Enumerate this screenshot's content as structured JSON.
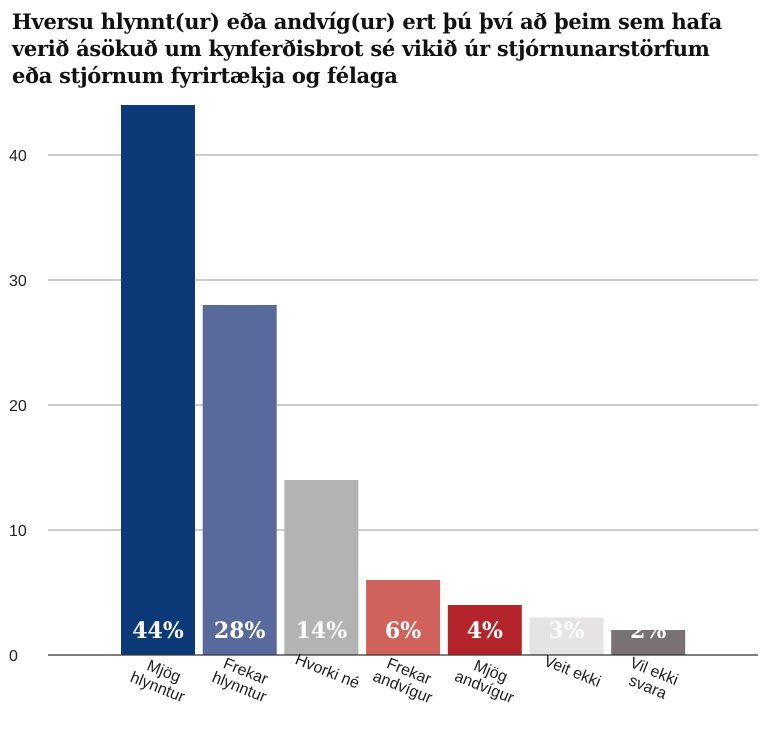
{
  "title_lines": [
    "Hversu hlynnt(ur) eða andvíg(ur) ert þú því að þeim sem hafa",
    "verið ásökuð um kynferðisbrot sé vikið úr stjórnunarstörfum",
    "eða stjórnum fyrirtækja og félaga"
  ],
  "chart_data": {
    "type": "bar",
    "title": "Hversu hlynnt(ur) eða andvíg(ur) ert þú því að þeim sem hafa verið ásökuð um kynferðisbrot sé vikið úr stjórnunarstörfum eða stjórnum fyrirtækja og félaga",
    "categories": [
      [
        "Mjög",
        "hlynntur"
      ],
      [
        "Frekar",
        "hlynntur"
      ],
      [
        "Hvorki né"
      ],
      [
        "Frekar",
        "andvígur"
      ],
      [
        "Mjög",
        "andvígur"
      ],
      [
        "Veit ekki"
      ],
      [
        "Vil ekki",
        "svara"
      ]
    ],
    "values": [
      44,
      28,
      14,
      6,
      4,
      3,
      2
    ],
    "data_labels": [
      "44%",
      "28%",
      "14%",
      "6%",
      "4%",
      "3%",
      "2%"
    ],
    "colors": [
      "#0c3a78",
      "#586a9c",
      "#b3b3b3",
      "#d0625c",
      "#b3252a",
      "#e6e3e4",
      "#7a7272"
    ],
    "ylim": [
      0,
      44
    ],
    "yticks": [
      0,
      10,
      20,
      30,
      40
    ],
    "grid": true,
    "xlabel": "",
    "ylabel": ""
  }
}
